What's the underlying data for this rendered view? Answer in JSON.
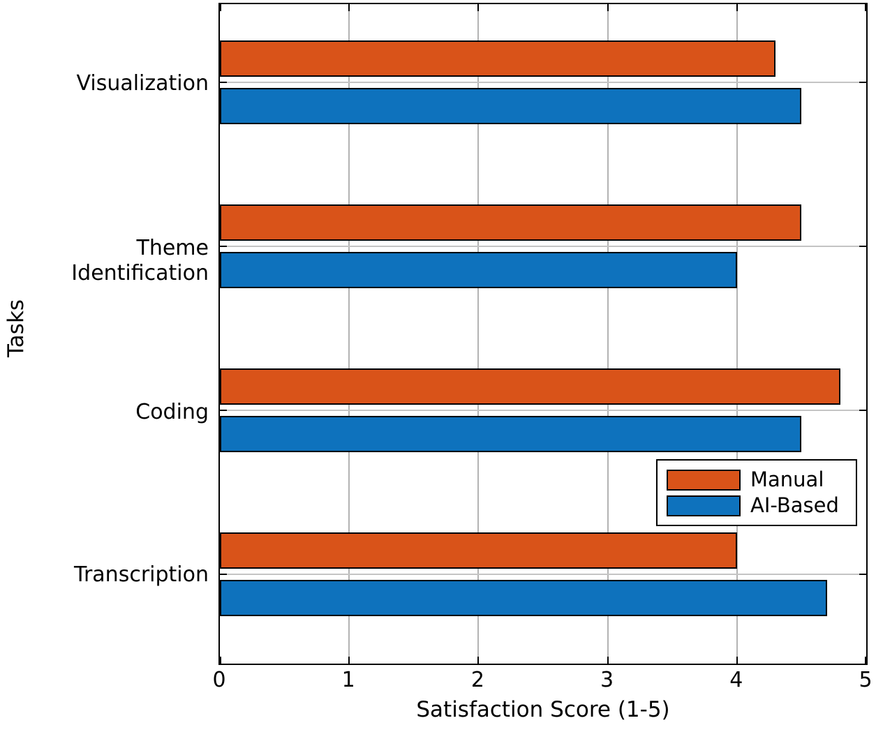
{
  "chart_data": {
    "type": "bar",
    "orientation": "horizontal",
    "title": "",
    "xlabel": "Satisfaction Score (1-5)",
    "ylabel": "Tasks",
    "categories": [
      "Visualization",
      "Theme\nIdentification",
      "Coding",
      "Transcription"
    ],
    "categories_order_note": "listed top-to-bottom as displayed",
    "series": [
      {
        "name": "Manual",
        "color": "#D95319",
        "values": [
          4.3,
          4.5,
          4.8,
          4.0
        ]
      },
      {
        "name": "AI-Based",
        "color": "#0E72BD",
        "values": [
          4.5,
          4.0,
          4.5,
          4.7
        ]
      }
    ],
    "xlim": [
      0,
      5
    ],
    "xticks": [
      0,
      1,
      2,
      3,
      4,
      5
    ],
    "grid": true,
    "legend_position": "middle-right",
    "colors": {
      "axis": "#000000",
      "gridline": "#b3b3b3",
      "background": "#ffffff"
    }
  }
}
